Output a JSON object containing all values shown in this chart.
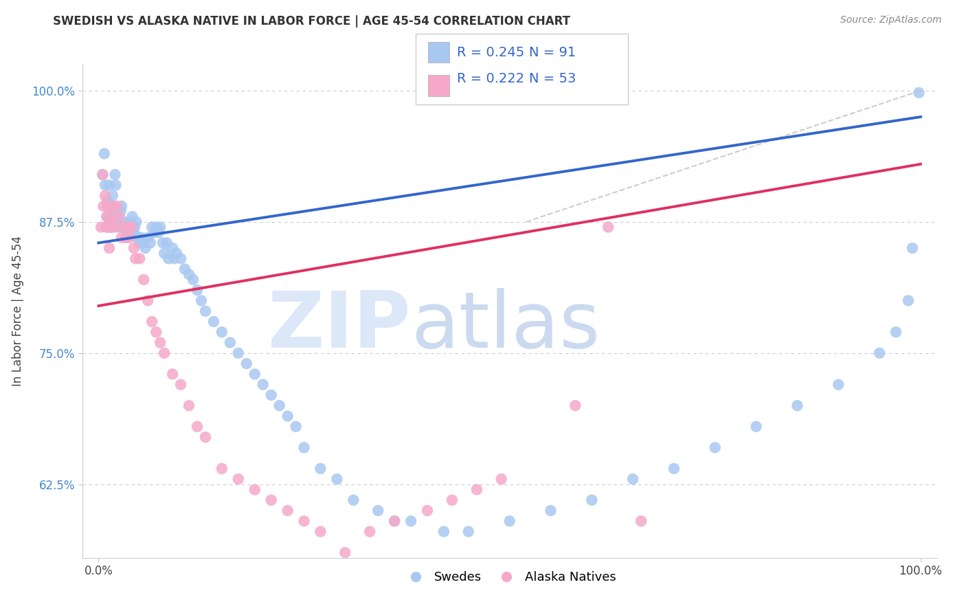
{
  "title": "SWEDISH VS ALASKA NATIVE IN LABOR FORCE | AGE 45-54 CORRELATION CHART",
  "source": "Source: ZipAtlas.com",
  "ylabel": "In Labor Force | Age 45-54",
  "ytick_labels": [
    "62.5%",
    "75.0%",
    "87.5%",
    "100.0%"
  ],
  "ytick_values": [
    0.625,
    0.75,
    0.875,
    1.0
  ],
  "xtick_labels": [
    "0.0%",
    "100.0%"
  ],
  "xtick_values": [
    0.0,
    1.0
  ],
  "xlim": [
    -0.02,
    1.02
  ],
  "ylim": [
    0.555,
    1.025
  ],
  "legend_blue_r": "R = 0.245",
  "legend_blue_n": "N = 91",
  "legend_pink_r": "R = 0.222",
  "legend_pink_n": "N = 53",
  "legend_blue_label": "Swedes",
  "legend_pink_label": "Alaska Natives",
  "blue_color": "#a8c8f0",
  "pink_color": "#f5a8c8",
  "line_blue_color": "#3366cc",
  "line_pink_color": "#e03060",
  "gray_dash_color": "#cccccc",
  "r_n_color": "#3366cc",
  "watermark_zip_color": "#dce8f5",
  "watermark_atlas_color": "#c8daf0",
  "blue_x": [
    0.005,
    0.007,
    0.008,
    0.01,
    0.011,
    0.012,
    0.013,
    0.014,
    0.015,
    0.016,
    0.017,
    0.018,
    0.019,
    0.02,
    0.021,
    0.022,
    0.023,
    0.025,
    0.027,
    0.028,
    0.03,
    0.032,
    0.034,
    0.035,
    0.037,
    0.038,
    0.04,
    0.041,
    0.043,
    0.044,
    0.046,
    0.048,
    0.05,
    0.052,
    0.055,
    0.057,
    0.06,
    0.063,
    0.065,
    0.068,
    0.07,
    0.073,
    0.075,
    0.078,
    0.08,
    0.083,
    0.085,
    0.09,
    0.092,
    0.095,
    0.1,
    0.105,
    0.11,
    0.115,
    0.12,
    0.125,
    0.13,
    0.14,
    0.15,
    0.16,
    0.17,
    0.18,
    0.19,
    0.2,
    0.21,
    0.22,
    0.23,
    0.24,
    0.25,
    0.27,
    0.29,
    0.31,
    0.34,
    0.36,
    0.38,
    0.42,
    0.45,
    0.5,
    0.55,
    0.6,
    0.65,
    0.7,
    0.75,
    0.8,
    0.85,
    0.9,
    0.95,
    0.97,
    0.985,
    0.99,
    0.998
  ],
  "blue_y": [
    0.92,
    0.94,
    0.91,
    0.88,
    0.895,
    0.87,
    0.91,
    0.88,
    0.875,
    0.87,
    0.9,
    0.89,
    0.885,
    0.92,
    0.91,
    0.88,
    0.875,
    0.87,
    0.885,
    0.89,
    0.87,
    0.875,
    0.86,
    0.87,
    0.875,
    0.865,
    0.87,
    0.88,
    0.865,
    0.87,
    0.875,
    0.86,
    0.855,
    0.86,
    0.855,
    0.85,
    0.86,
    0.855,
    0.87,
    0.865,
    0.87,
    0.865,
    0.87,
    0.855,
    0.845,
    0.855,
    0.84,
    0.85,
    0.84,
    0.845,
    0.84,
    0.83,
    0.825,
    0.82,
    0.81,
    0.8,
    0.79,
    0.78,
    0.77,
    0.76,
    0.75,
    0.74,
    0.73,
    0.72,
    0.71,
    0.7,
    0.69,
    0.68,
    0.66,
    0.64,
    0.63,
    0.61,
    0.6,
    0.59,
    0.59,
    0.58,
    0.58,
    0.59,
    0.6,
    0.61,
    0.63,
    0.64,
    0.66,
    0.68,
    0.7,
    0.72,
    0.75,
    0.77,
    0.8,
    0.85,
    0.998
  ],
  "pink_x": [
    0.003,
    0.005,
    0.006,
    0.008,
    0.009,
    0.01,
    0.011,
    0.012,
    0.013,
    0.014,
    0.015,
    0.016,
    0.018,
    0.02,
    0.022,
    0.025,
    0.028,
    0.03,
    0.033,
    0.035,
    0.038,
    0.04,
    0.043,
    0.045,
    0.05,
    0.055,
    0.06,
    0.065,
    0.07,
    0.075,
    0.08,
    0.09,
    0.1,
    0.11,
    0.12,
    0.13,
    0.15,
    0.17,
    0.19,
    0.21,
    0.23,
    0.25,
    0.27,
    0.3,
    0.33,
    0.36,
    0.4,
    0.43,
    0.46,
    0.49,
    0.58,
    0.62,
    0.66
  ],
  "pink_y": [
    0.87,
    0.92,
    0.89,
    0.9,
    0.87,
    0.88,
    0.89,
    0.87,
    0.85,
    0.875,
    0.88,
    0.87,
    0.89,
    0.87,
    0.89,
    0.88,
    0.86,
    0.87,
    0.86,
    0.87,
    0.86,
    0.87,
    0.85,
    0.84,
    0.84,
    0.82,
    0.8,
    0.78,
    0.77,
    0.76,
    0.75,
    0.73,
    0.72,
    0.7,
    0.68,
    0.67,
    0.64,
    0.63,
    0.62,
    0.61,
    0.6,
    0.59,
    0.58,
    0.56,
    0.58,
    0.59,
    0.6,
    0.61,
    0.62,
    0.63,
    0.7,
    0.87,
    0.59
  ],
  "gray_line_x": [
    0.52,
    1.0
  ],
  "gray_line_y": [
    0.875,
    1.0
  ]
}
